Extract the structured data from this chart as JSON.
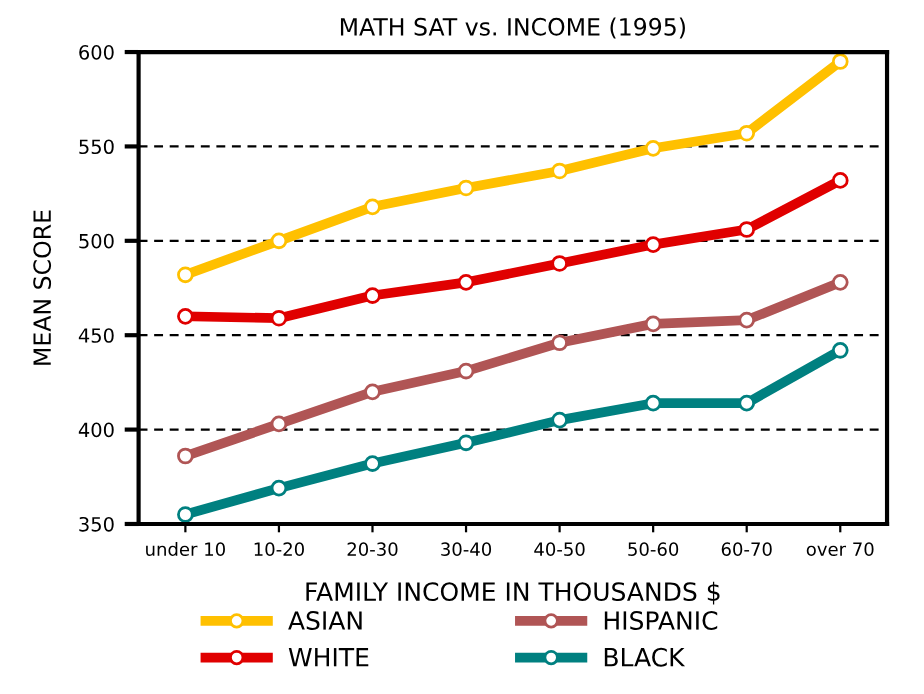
{
  "chart_data": {
    "type": "line",
    "title": "MATH SAT vs. INCOME (1995)",
    "xlabel": "FAMILY INCOME IN THOUSANDS $",
    "ylabel": "MEAN SCORE",
    "categories": [
      "under 10",
      "10-20",
      "20-30",
      "30-40",
      "40-50",
      "50-60",
      "60-70",
      "over 70"
    ],
    "series": [
      {
        "name": "ASIAN",
        "color": "#ffc000",
        "values": [
          482,
          500,
          518,
          528,
          537,
          549,
          557,
          595
        ]
      },
      {
        "name": "WHITE",
        "color": "#e00000",
        "values": [
          460,
          459,
          471,
          478,
          488,
          498,
          506,
          532
        ]
      },
      {
        "name": "HISPANIC",
        "color": "#b05555",
        "values": [
          386,
          403,
          420,
          431,
          446,
          456,
          458,
          478
        ]
      },
      {
        "name": "BLACK",
        "color": "#008080",
        "values": [
          355,
          369,
          382,
          393,
          405,
          414,
          414,
          442
        ]
      }
    ],
    "ylim": [
      350,
      600
    ],
    "yticks": [
      350,
      400,
      450,
      500,
      550,
      600
    ],
    "grid": "y",
    "legend": "bottom",
    "marker": "circle",
    "line_style": "solid"
  }
}
